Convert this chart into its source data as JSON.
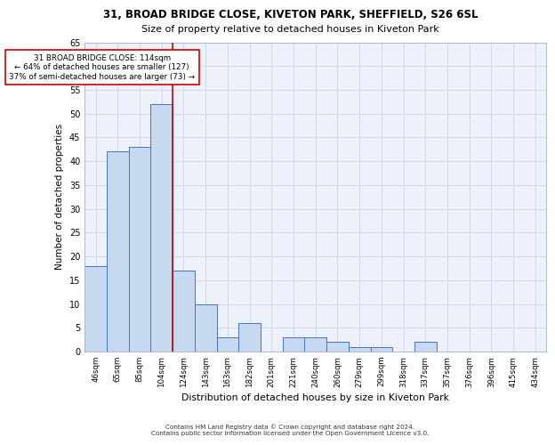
{
  "title_line1": "31, BROAD BRIDGE CLOSE, KIVETON PARK, SHEFFIELD, S26 6SL",
  "title_line2": "Size of property relative to detached houses in Kiveton Park",
  "xlabel": "Distribution of detached houses by size in Kiveton Park",
  "ylabel": "Number of detached properties",
  "categories": [
    "46sqm",
    "65sqm",
    "85sqm",
    "104sqm",
    "124sqm",
    "143sqm",
    "163sqm",
    "182sqm",
    "201sqm",
    "221sqm",
    "240sqm",
    "260sqm",
    "279sqm",
    "299sqm",
    "318sqm",
    "337sqm",
    "357sqm",
    "376sqm",
    "396sqm",
    "415sqm",
    "434sqm"
  ],
  "values": [
    18,
    42,
    43,
    52,
    17,
    10,
    3,
    6,
    0,
    3,
    3,
    2,
    1,
    1,
    0,
    2,
    0,
    0,
    0,
    0,
    0
  ],
  "bar_color": "#c6d9f0",
  "bar_edge_color": "#4472c4",
  "annotation_line1": "31 BROAD BRIDGE CLOSE: 114sqm",
  "annotation_line2": "← 64% of detached houses are smaller (127)",
  "annotation_line3": "37% of semi-detached houses are larger (73) →",
  "vline_position": 3.5,
  "vline_color": "#cc0000",
  "ylim": [
    0,
    65
  ],
  "yticks": [
    0,
    5,
    10,
    15,
    20,
    25,
    30,
    35,
    40,
    45,
    50,
    55,
    60,
    65
  ],
  "grid_color": "#d0d8e8",
  "facecolor": "#edf1f9",
  "footer_line1": "Contains HM Land Registry data © Crown copyright and database right 2024.",
  "footer_line2": "Contains public sector information licensed under the Open Government Licence v3.0."
}
